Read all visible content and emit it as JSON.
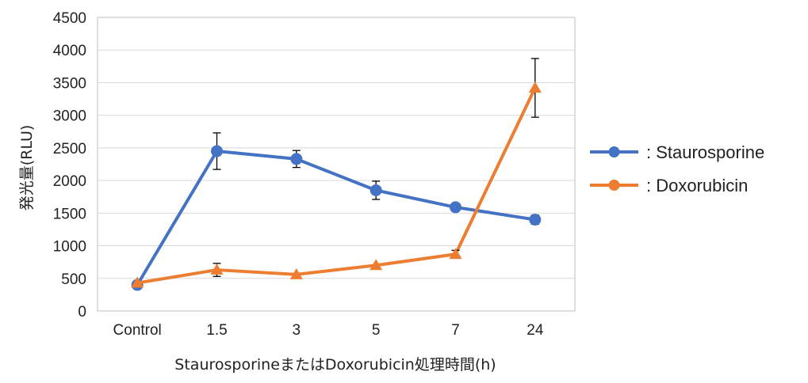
{
  "chart_data": {
    "type": "line",
    "categories": [
      "Control",
      "1.5",
      "3",
      "5",
      "7",
      "24"
    ],
    "ylabel": "発光量(RLU)",
    "xlabel": "StaurosporineまたはDoxorubicin処理時間(h)",
    "ylim": [
      0,
      4500
    ],
    "yticks": [
      0,
      500,
      1000,
      1500,
      2000,
      2500,
      3000,
      3500,
      4000,
      4500
    ],
    "grid": true,
    "legend_position": "right",
    "series": [
      {
        "name": ": Staurosporine",
        "color": "#4472C4",
        "marker": "circle",
        "values": [
          400,
          2450,
          2330,
          1850,
          1590,
          1400
        ],
        "error": [
          0,
          280,
          130,
          140,
          0,
          70
        ]
      },
      {
        "name": ": Doxorubicin",
        "color": "#ED7D31",
        "marker": "triangle",
        "values": [
          430,
          630,
          560,
          700,
          870,
          3420
        ],
        "error": [
          0,
          100,
          0,
          0,
          60,
          450
        ]
      }
    ]
  }
}
